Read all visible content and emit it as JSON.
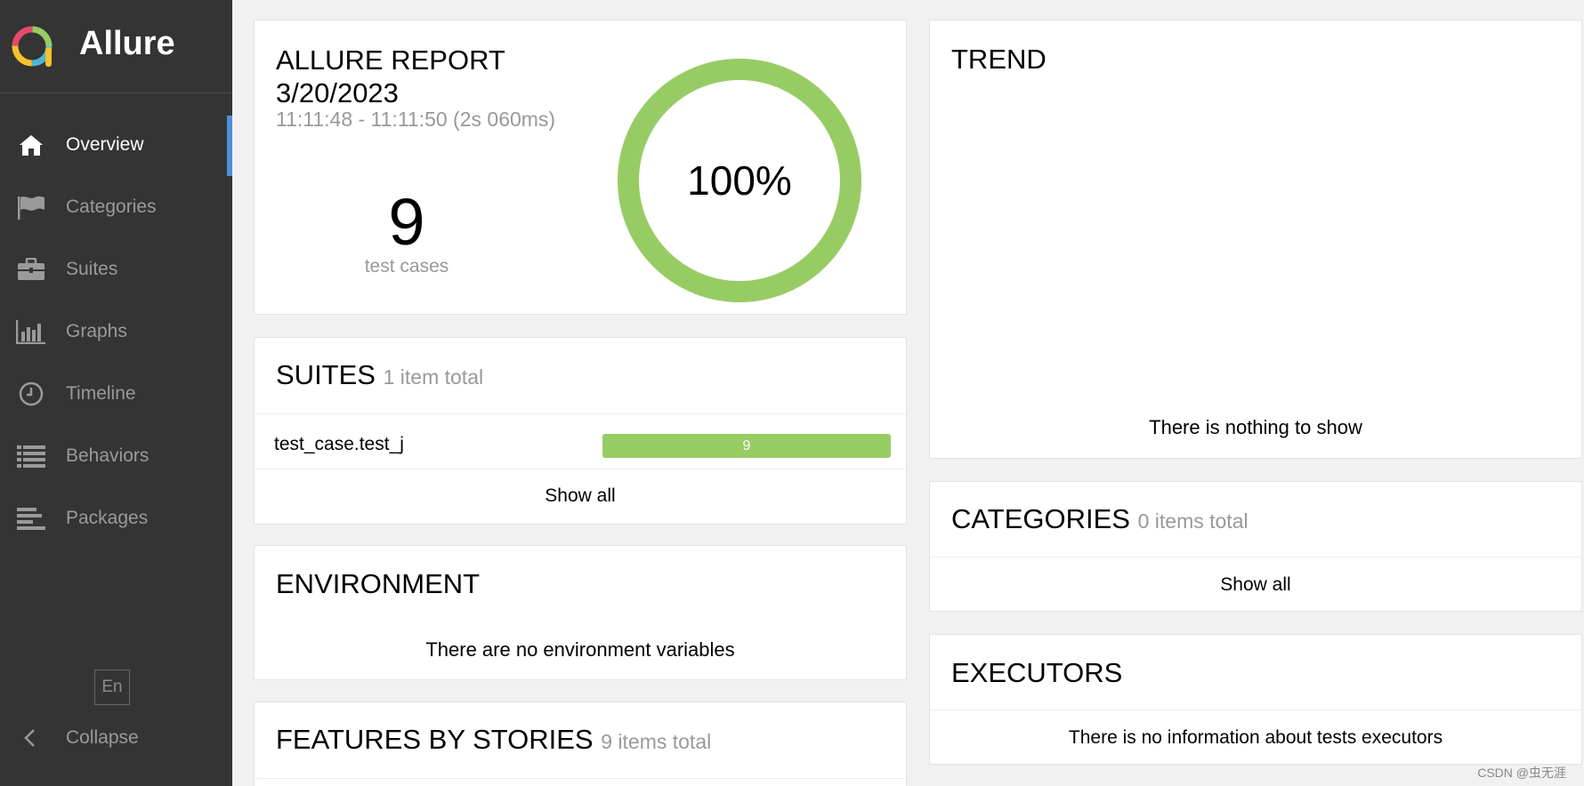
{
  "app": {
    "name": "Allure"
  },
  "colors": {
    "passed": "#97cc64",
    "sidebar": "#343434",
    "accent": "#4a90d9"
  },
  "sidebar": {
    "items": [
      {
        "label": "Overview",
        "icon": "home-icon",
        "active": true
      },
      {
        "label": "Categories",
        "icon": "flag-icon"
      },
      {
        "label": "Suites",
        "icon": "briefcase-icon"
      },
      {
        "label": "Graphs",
        "icon": "bar-chart-icon"
      },
      {
        "label": "Timeline",
        "icon": "clock-icon"
      },
      {
        "label": "Behaviors",
        "icon": "list-icon"
      },
      {
        "label": "Packages",
        "icon": "align-left-icon"
      }
    ],
    "language": "En",
    "collapse_label": "Collapse"
  },
  "overview": {
    "title_line1": "ALLURE REPORT",
    "title_line2": "3/20/2023",
    "time_range": "11:11:48 - 11:11:50 (2s 060ms)",
    "test_count": "9",
    "test_count_label": "test cases",
    "pass_rate": "100%",
    "pass_fraction": 1.0
  },
  "suites": {
    "title": "SUITES",
    "subtitle": "1 item total",
    "rows": [
      {
        "name": "test_case.test_j",
        "passed": "9"
      }
    ],
    "show_all": "Show all"
  },
  "environment": {
    "title": "ENVIRONMENT",
    "empty_text": "There are no environment variables"
  },
  "features": {
    "title": "FEATURES BY STORIES",
    "subtitle": "9 items total"
  },
  "trend": {
    "title": "TREND",
    "empty_text": "There is nothing to show"
  },
  "categories": {
    "title": "CATEGORIES",
    "subtitle": "0 items total",
    "show_all": "Show all"
  },
  "executors": {
    "title": "EXECUTORS",
    "empty_text": "There is no information about tests executors"
  },
  "watermark": "CSDN @虫无涯"
}
